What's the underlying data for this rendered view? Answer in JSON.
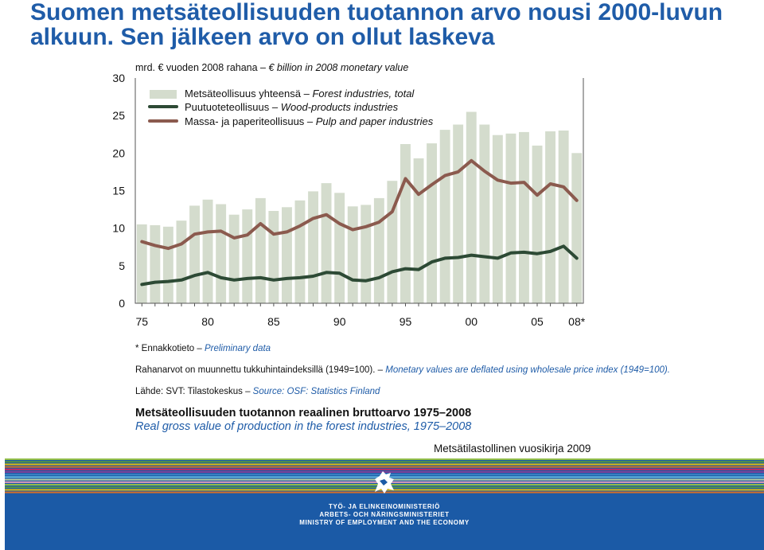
{
  "slide": {
    "title": "Suomen metsäteollisuuden tuotannon arvo nousi 2000-luvun alkuun. Sen jälkeen arvo on ollut laskeva"
  },
  "chart_data": {
    "type": "bar",
    "unit_label_fi": "mrd. € vuoden 2008 rahana –",
    "unit_label_en": "€ billion in 2008 monetary value",
    "x": [
      1975,
      1976,
      1977,
      1978,
      1979,
      1980,
      1981,
      1982,
      1983,
      1984,
      1985,
      1986,
      1987,
      1988,
      1989,
      1990,
      1991,
      1992,
      1993,
      1994,
      1995,
      1996,
      1997,
      1998,
      1999,
      2000,
      2001,
      2002,
      2003,
      2004,
      2005,
      2006,
      2007,
      2008
    ],
    "x_tick_labels": [
      "75",
      "80",
      "85",
      "90",
      "95",
      "00",
      "05",
      "08*"
    ],
    "x_tick_years": [
      1975,
      1980,
      1985,
      1990,
      1995,
      2000,
      2005,
      2008
    ],
    "y_ticks": [
      0,
      5,
      10,
      15,
      20,
      25,
      30
    ],
    "ylim": [
      0,
      30
    ],
    "grid": false,
    "legend_position": "top-left",
    "series": [
      {
        "name_fi": "Metsäteollisuus yhteensä –",
        "name_en": "Forest industries, total",
        "kind": "bar",
        "color": "#d4dccd",
        "values": [
          10.5,
          10.4,
          10.2,
          11.0,
          13.0,
          13.8,
          13.2,
          11.8,
          12.5,
          14.0,
          12.3,
          12.8,
          13.7,
          14.9,
          16.0,
          14.7,
          12.9,
          13.1,
          14.0,
          16.3,
          21.2,
          19.3,
          21.3,
          23.1,
          23.8,
          25.5,
          23.8,
          22.4,
          22.6,
          22.8,
          21.0,
          22.9,
          23.0,
          20.0
        ]
      },
      {
        "name_fi": "Puutuoteteollisuus –",
        "name_en": "Wood-products industries",
        "kind": "line",
        "color": "#2d4a35",
        "values": [
          2.5,
          2.8,
          2.9,
          3.1,
          3.7,
          4.1,
          3.4,
          3.1,
          3.3,
          3.4,
          3.1,
          3.3,
          3.4,
          3.6,
          4.1,
          4.0,
          3.1,
          3.0,
          3.4,
          4.2,
          4.6,
          4.5,
          5.5,
          6.0,
          6.1,
          6.4,
          6.2,
          6.0,
          6.7,
          6.8,
          6.6,
          6.9,
          7.6,
          6.0
        ]
      },
      {
        "name_fi": "Massa- ja paperiteollisuus –",
        "name_en": "Pulp and paper industries",
        "kind": "line",
        "color": "#8b5a4e",
        "values": [
          8.2,
          7.7,
          7.3,
          7.9,
          9.2,
          9.5,
          9.6,
          8.7,
          9.1,
          10.6,
          9.2,
          9.5,
          10.3,
          11.3,
          11.8,
          10.6,
          9.8,
          10.2,
          10.8,
          12.2,
          16.6,
          14.5,
          15.8,
          17.0,
          17.5,
          19.0,
          17.6,
          16.4,
          16.0,
          16.1,
          14.4,
          15.9,
          15.5,
          13.7
        ]
      }
    ]
  },
  "notes": {
    "preliminary_fi": "* Ennakkotieto –",
    "preliminary_en": "Preliminary data",
    "deflation_fi": "Rahanarvot on muunnettu tukkuhintaindeksillä (1949=100). –",
    "deflation_en": "Monetary values are deflated using wholesale price index (1949=100).",
    "source_fi": "Lähde: SVT: Tilastokeskus –",
    "source_en": "Source: OSF: Statistics Finland"
  },
  "caption": {
    "fi": "Metsäteollisuuden tuotannon reaalinen bruttoarvo 1975–2008",
    "en": "Real gross value of production in the forest industries, 1975–2008"
  },
  "yearbook": "Metsätilastollinen vuosikirja 2009",
  "footer": {
    "ministry_fi": "TYÖ- JA ELINKEINOMINISTERIÖ",
    "ministry_sv": "ARBETS- OCH NÄRINGSMINISTERIET",
    "ministry_en": "MINISTRY OF EMPLOYMENT AND THE ECONOMY",
    "stripe_colors": [
      "#9fc83f",
      "#5b9a3c",
      "#f2c500",
      "#e8701a",
      "#d5255f",
      "#8c3d96",
      "#3e86c9",
      "#6ec1e4",
      "#c9d9a0",
      "#f6a3be"
    ]
  }
}
